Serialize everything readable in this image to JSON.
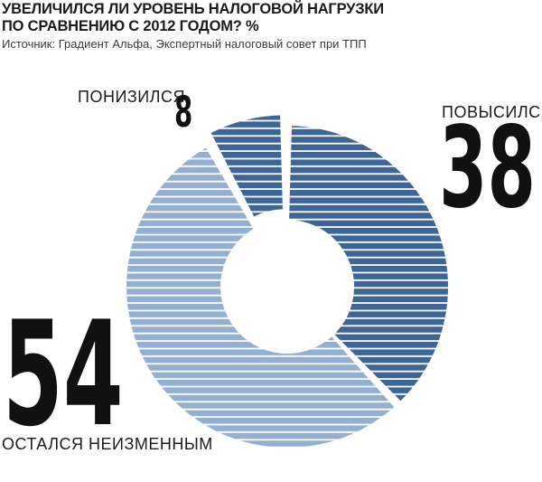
{
  "header": {
    "title_line1": "УВЕЛИЧИЛСЯ ЛИ УРОВЕНЬ НАЛОГОВОЙ НАГРУЗКИ",
    "title_line2": "ПО СРАВНЕНИЮ С 2012 ГОДОМ? %",
    "source": "Источник: Градиент Альфа, Экспертный налоговый совет при ТПП"
  },
  "chart_data": {
    "type": "pie",
    "title": "УВЕЛИЧИЛСЯ ЛИ УРОВЕНЬ НАЛОГОВОЙ НАГРУЗКИ ПО СРАВНЕНИЮ С 2012 ГОДОМ? %",
    "unit": "%",
    "donut": true,
    "categories": [
      "ПОНИЗИЛСЯ",
      "ПОВЫСИЛСЯ",
      "ОСТАЛСЯ НЕИЗМЕННЫМ"
    ],
    "values": [
      8,
      38,
      54
    ],
    "value_labels": [
      "8",
      "38",
      "54"
    ],
    "colors": [
      "#3d6597",
      "#3d6597",
      "#93b0d3"
    ],
    "stripe_color": "#ffffff",
    "exploded_slice": "ПОНИЗИЛСЯ"
  }
}
